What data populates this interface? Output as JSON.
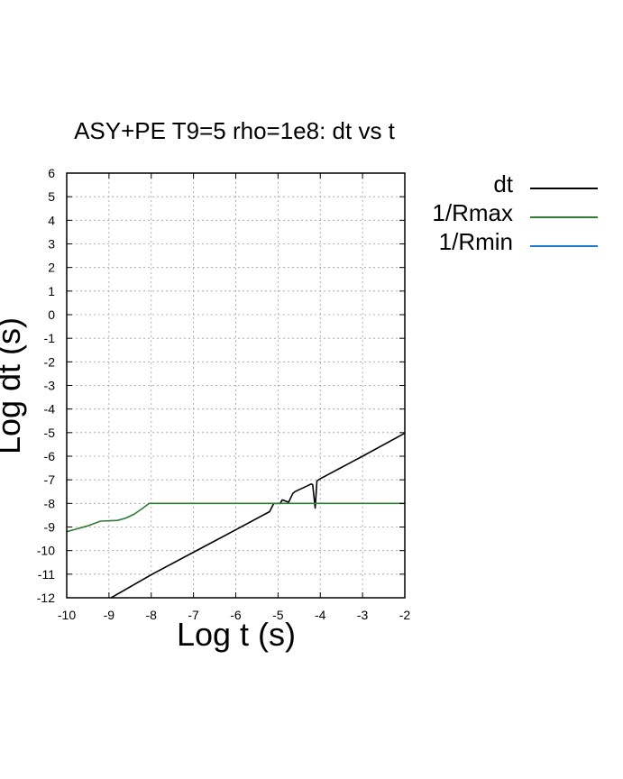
{
  "chart_data": {
    "type": "line",
    "title": "ASY+PE T9=5 rho=1e8: dt vs t",
    "xlabel": "Log t (s)",
    "ylabel": "Log dt (s)",
    "xlim": [
      -10,
      -2
    ],
    "ylim": [
      -12,
      6
    ],
    "x_ticks": [
      "-10",
      "-9",
      "-8",
      "-7",
      "-6",
      "-5",
      "-4",
      "-3",
      "-2"
    ],
    "y_ticks": [
      "6",
      "5",
      "4",
      "3",
      "2",
      "1",
      "0",
      "-1",
      "-2",
      "-3",
      "-4",
      "-5",
      "-6",
      "-7",
      "-8",
      "-9",
      "-10",
      "-11",
      "-12"
    ],
    "grid": true,
    "legend_position": "right",
    "series": [
      {
        "name": "dt",
        "color": "#000000",
        "points": [
          [
            -8.95,
            -12
          ],
          [
            -8.0,
            -11.02
          ],
          [
            -7.0,
            -10.07
          ],
          [
            -6.0,
            -9.12
          ],
          [
            -5.2,
            -8.35
          ],
          [
            -5.1,
            -8.0
          ],
          [
            -4.95,
            -8.0
          ],
          [
            -4.9,
            -7.85
          ],
          [
            -4.75,
            -7.95
          ],
          [
            -4.65,
            -7.58
          ],
          [
            -4.6,
            -7.5
          ],
          [
            -4.3,
            -7.25
          ],
          [
            -4.22,
            -7.18
          ],
          [
            -4.18,
            -7.2
          ],
          [
            -4.12,
            -8.2
          ],
          [
            -4.08,
            -7.05
          ],
          [
            -4.0,
            -6.95
          ],
          [
            -3.0,
            -6.0
          ],
          [
            -2.0,
            -5.02
          ]
        ]
      },
      {
        "name": "1/Rmax",
        "color": "#2e7d32",
        "points": [
          [
            -10,
            -9.2
          ],
          [
            -9.8,
            -9.1
          ],
          [
            -9.5,
            -8.95
          ],
          [
            -9.2,
            -8.75
          ],
          [
            -8.8,
            -8.72
          ],
          [
            -8.6,
            -8.62
          ],
          [
            -8.4,
            -8.45
          ],
          [
            -8.2,
            -8.2
          ],
          [
            -8.05,
            -8.0
          ],
          [
            -7.0,
            -8.0
          ],
          [
            -6.0,
            -8.0
          ],
          [
            -5.0,
            -8.0
          ],
          [
            -4.0,
            -8.0
          ],
          [
            -3.0,
            -8.0
          ],
          [
            -2.0,
            -8.0
          ]
        ]
      },
      {
        "name": "1/Rmin",
        "color": "#1f78d1",
        "points": []
      }
    ]
  }
}
